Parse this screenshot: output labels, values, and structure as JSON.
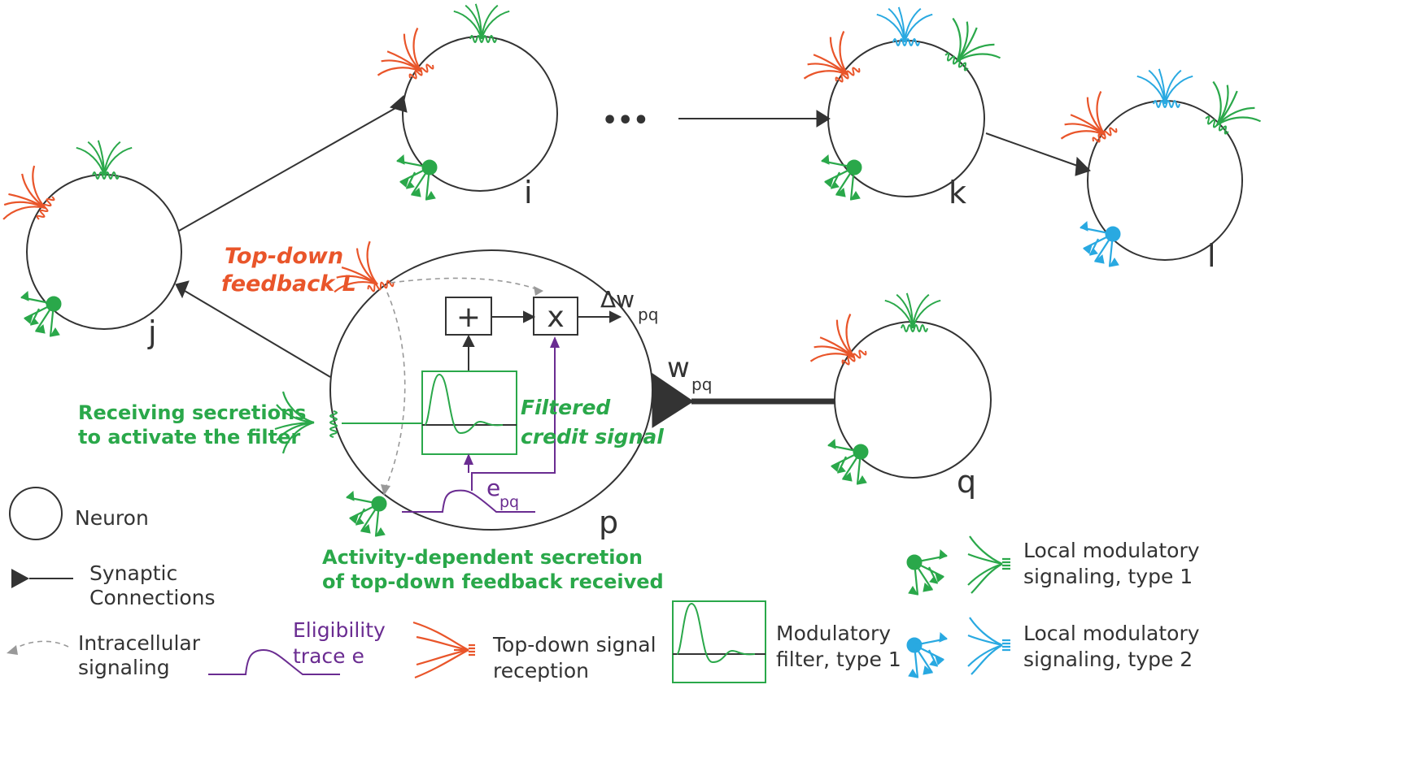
{
  "colors": {
    "neuron": "#333333",
    "green": "#2aa84a",
    "orange": "#e9552a",
    "blue": "#29a9e1",
    "purple": "#6a2c91",
    "dashed": "#999999"
  },
  "nodes": {
    "j": "j",
    "i": "i",
    "k": "k",
    "l": "l",
    "p": "p",
    "q": "q"
  },
  "ellipsis": "•••",
  "labels": {
    "topdown_l1": "Top-down",
    "topdown_l2": "feedback L",
    "plus": "+",
    "times": "x",
    "delta_w": "Δw",
    "delta_w_sub": "pq",
    "w": "w",
    "w_sub": "pq",
    "e": "e",
    "e_sub": "pq",
    "receiving_l1": "Receiving secretions",
    "receiving_l2": "to activate the filter",
    "filtered_l1": "Filtered",
    "filtered_l2": "credit signal",
    "activity_l1": "Activity-dependent secretion",
    "activity_l2": "of top-down feedback received"
  },
  "legend": {
    "neuron": "Neuron",
    "synaptic_l1": "Synaptic",
    "synaptic_l2": "Connections",
    "intracellular_l1": "Intracellular",
    "intracellular_l2": "signaling",
    "eligibility_l1": "Eligibility",
    "eligibility_l2": "trace e",
    "topdown_l1": "Top-down signal",
    "topdown_l2": "reception",
    "filter_l1": "Modulatory",
    "filter_l2": "filter, type 1",
    "local1_l1": "Local modulatory",
    "local1_l2": "signaling, type 1",
    "local2_l1": "Local modulatory",
    "local2_l2": "signaling, type 2"
  }
}
